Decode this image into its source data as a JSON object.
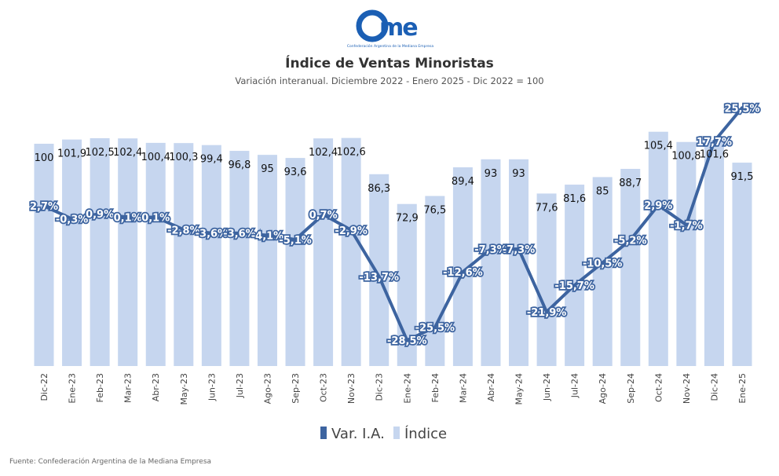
{
  "logo": {
    "text": "came",
    "tagline": "Confederación Argentina de la Mediana Empresa"
  },
  "source": "Fuente: Confederación Argentina de la Mediana Empresa",
  "colors": {
    "bar": "#c6d6ef",
    "line": "#3d64a0"
  },
  "chart_data": {
    "type": "bar+line",
    "title": "Índice de Ventas Minoristas",
    "subtitle": "Variación interanual. Diciembre 2022 - Enero 2025 - Dic 2022 = 100",
    "categories": [
      "Dic-22",
      "Ene-23",
      "Feb-23",
      "Mar-23",
      "Abr-23",
      "May-23",
      "Jun-23",
      "Jul-23",
      "Ago-23",
      "Sep-23",
      "Oct-23",
      "Nov-23",
      "Dic-23",
      "Ene-24",
      "Feb-24",
      "Mar-24",
      "Abr-24",
      "May-24",
      "Jun-24",
      "Jul-24",
      "Ago-24",
      "Sep-24",
      "Oct-24",
      "Nov-24",
      "Dic-24",
      "Ene-25"
    ],
    "series": [
      {
        "name": "Índice",
        "type": "bar",
        "values": [
          100,
          101.9,
          102.5,
          102.4,
          100.4,
          100.3,
          99.4,
          96.8,
          95,
          93.6,
          102.4,
          102.6,
          86.3,
          72.9,
          76.5,
          89.4,
          93,
          93,
          77.6,
          81.6,
          85,
          88.7,
          105.4,
          100.8,
          101.6,
          91.5
        ],
        "labels": [
          "100",
          "101,9",
          "102,5",
          "102,4",
          "100,4",
          "100,3",
          "99,4",
          "96,8",
          "95",
          "93,6",
          "102,4",
          "102,6",
          "86,3",
          "72,9",
          "76,5",
          "89,4",
          "93",
          "93",
          "77,6",
          "81,6",
          "85",
          "88,7",
          "105,4",
          "100,8",
          "101,6",
          "91,5"
        ]
      },
      {
        "name": "Var. I.A.",
        "type": "line",
        "values": [
          2.7,
          -0.3,
          0.9,
          0.1,
          0.1,
          -2.8,
          -3.6,
          -3.6,
          -4.1,
          -5.1,
          0.7,
          -2.9,
          -13.7,
          -28.5,
          -25.5,
          -12.6,
          -7.3,
          -7.3,
          -21.9,
          -15.7,
          -10.5,
          -5.2,
          2.9,
          -1.7,
          17.7,
          25.5
        ],
        "labels": [
          "2,7%",
          "-0,3%",
          "0,9%",
          "0,1%",
          "0,1%",
          "-2,8%",
          "-3,6%",
          "-3,6%",
          "-4,1%",
          "-5,1%",
          "0,7%",
          "-2,9%",
          "-13,7%",
          "-28,5%",
          "-25,5%",
          "-12,6%",
          "-7,3%",
          "-7,3%",
          "-21,9%",
          "-15,7%",
          "-10,5%",
          "-5,2%",
          "2,9%",
          "-1,7%",
          "17,7%",
          "25,5%"
        ]
      }
    ],
    "legend": {
      "position": "bottom",
      "items": [
        "Var. I.A.",
        "Índice"
      ]
    },
    "grid": false
  }
}
